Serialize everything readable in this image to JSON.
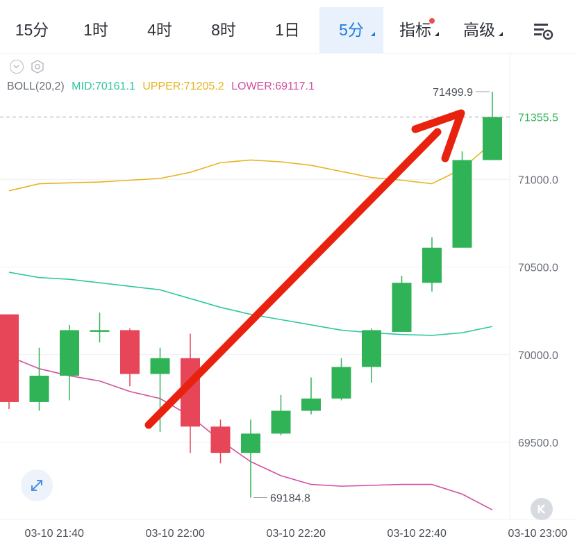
{
  "tabs": [
    {
      "label": "15分",
      "active": false
    },
    {
      "label": "1时",
      "active": false
    },
    {
      "label": "4时",
      "active": false
    },
    {
      "label": "8时",
      "active": false
    },
    {
      "label": "1日",
      "active": false
    },
    {
      "label": "5分",
      "active": true
    },
    {
      "label": "指标",
      "active": false
    },
    {
      "label": "高级",
      "active": false
    }
  ],
  "settings_icon": "chart-settings-icon",
  "colors": {
    "up": "#2fb356",
    "down": "#e64657",
    "mid": "#2ec8a0",
    "upper": "#e6b31e",
    "lower": "#d14fa0",
    "arrow": "#e8220f",
    "active_tab": "#1f7ae0"
  },
  "indicator": {
    "name": "BOLL(20,2)",
    "mid_label": "MID:70161.1",
    "upper_label": "UPPER:71205.2",
    "lower_label": "LOWER:69117.1"
  },
  "chart_data": {
    "type": "candlestick",
    "interval": "5分",
    "y_ticks": [
      71000.0,
      70500.0,
      70000.0,
      69500.0
    ],
    "y_tick_labels": [
      "71000.0",
      "70500.0",
      "70000.0",
      "69500.0"
    ],
    "ylim": [
      69070,
      71660
    ],
    "current_price": 71355.5,
    "current_price_label": "71355.5",
    "x_tick_labels": [
      "03-10 21:40",
      "03-10 22:00",
      "03-10 22:20",
      "03-10 22:40",
      "03-10 23:00"
    ],
    "x_ticks_index": [
      1.5,
      5.5,
      9.5,
      13.5,
      17.5
    ],
    "max_label": "71499.9",
    "min_label": "69184.8",
    "candles": [
      {
        "o": 70230,
        "h": 70230,
        "l": 69690,
        "c": 69730
      },
      {
        "o": 69730,
        "h": 70040,
        "l": 69680,
        "c": 69880
      },
      {
        "o": 69880,
        "h": 70170,
        "l": 69740,
        "c": 70140
      },
      {
        "o": 70130,
        "h": 70240,
        "l": 70070,
        "c": 70140
      },
      {
        "o": 70140,
        "h": 70150,
        "l": 69820,
        "c": 69890
      },
      {
        "o": 69890,
        "h": 70040,
        "l": 69560,
        "c": 69980
      },
      {
        "o": 69980,
        "h": 70120,
        "l": 69440,
        "c": 69590
      },
      {
        "o": 69590,
        "h": 69630,
        "l": 69380,
        "c": 69440
      },
      {
        "o": 69440,
        "h": 69630,
        "l": 69185,
        "c": 69550
      },
      {
        "o": 69550,
        "h": 69770,
        "l": 69540,
        "c": 69680
      },
      {
        "o": 69680,
        "h": 69870,
        "l": 69660,
        "c": 69750
      },
      {
        "o": 69750,
        "h": 69980,
        "l": 69740,
        "c": 69930
      },
      {
        "o": 69930,
        "h": 70150,
        "l": 69840,
        "c": 70140
      },
      {
        "o": 70130,
        "h": 70450,
        "l": 70130,
        "c": 70410
      },
      {
        "o": 70410,
        "h": 70670,
        "l": 70360,
        "c": 70610
      },
      {
        "o": 70610,
        "h": 71160,
        "l": 70610,
        "c": 71110
      },
      {
        "o": 71110,
        "h": 71499.9,
        "l": 71110,
        "c": 71355.5
      }
    ],
    "upper": [
      70935,
      70975,
      70980,
      70985,
      70995,
      71005,
      71040,
      71095,
      71110,
      71100,
      71080,
      71045,
      71010,
      70995,
      70975,
      71060,
      71210
    ],
    "mid": [
      70470,
      70440,
      70430,
      70410,
      70390,
      70370,
      70320,
      70270,
      70230,
      70200,
      70170,
      70140,
      70125,
      70115,
      70110,
      70125,
      70161
    ],
    "lower": [
      69990,
      69920,
      69880,
      69850,
      69790,
      69750,
      69650,
      69510,
      69390,
      69310,
      69260,
      69250,
      69255,
      69260,
      69260,
      69205,
      69115
    ]
  },
  "annotation": {
    "type": "arrow",
    "direction": "up-right"
  },
  "buttons": {
    "zoom": "expand-icon",
    "back": "return-latest-icon"
  }
}
